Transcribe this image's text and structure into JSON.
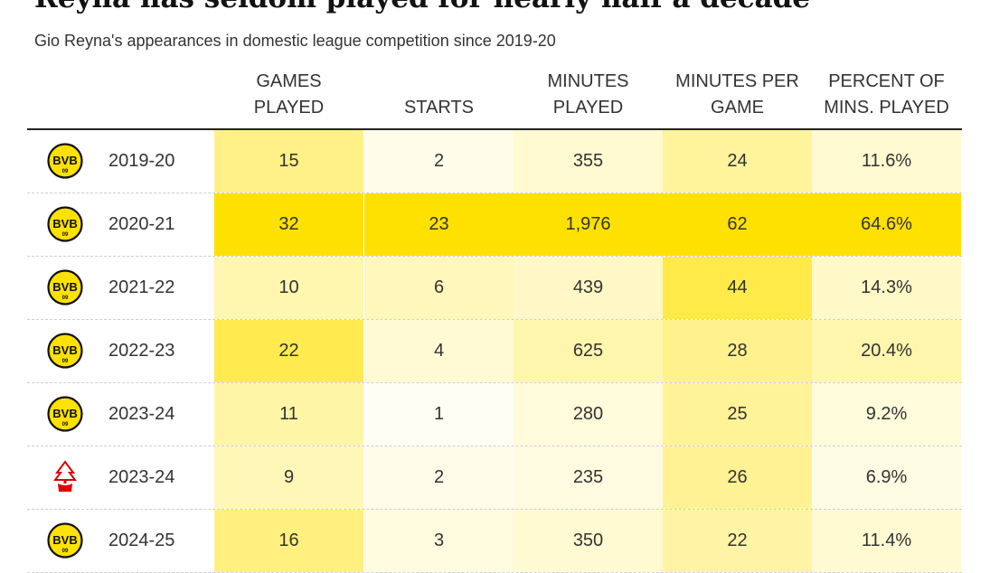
{
  "title": "Reyna has seldom played for nearly half a decade",
  "subtitle": "Gio Reyna's appearances in domestic league competition since 2019-20",
  "colors": {
    "scale_low": "#ffffff",
    "scale_high": "#ffe100",
    "bvb_yellow": "#fde100",
    "forest_red": "#dd0000"
  },
  "chart_data": {
    "type": "table",
    "columns": [
      {
        "key": "games",
        "label_lines": [
          "GAMES",
          "PLAYED"
        ]
      },
      {
        "key": "starts",
        "label_lines": [
          "STARTS"
        ]
      },
      {
        "key": "minutes",
        "label_lines": [
          "MINUTES",
          "PLAYED"
        ]
      },
      {
        "key": "mpg",
        "label_lines": [
          "MINUTES PER",
          "GAME"
        ]
      },
      {
        "key": "pct",
        "label_lines": [
          "PERCENT OF",
          "MINS. PLAYED"
        ]
      }
    ],
    "rows": [
      {
        "club_icon": "bvb-crest-icon",
        "season": "2019-20",
        "games": 15,
        "starts": 2,
        "minutes": 355,
        "minutes_display": "355",
        "mpg": 24,
        "pct": 11.6,
        "pct_display": "11.6%"
      },
      {
        "club_icon": "bvb-crest-icon",
        "season": "2020-21",
        "games": 32,
        "starts": 23,
        "minutes": 1976,
        "minutes_display": "1,976",
        "mpg": 62,
        "pct": 64.6,
        "pct_display": "64.6%"
      },
      {
        "club_icon": "bvb-crest-icon",
        "season": "2021-22",
        "games": 10,
        "starts": 6,
        "minutes": 439,
        "minutes_display": "439",
        "mpg": 44,
        "pct": 14.3,
        "pct_display": "14.3%"
      },
      {
        "club_icon": "bvb-crest-icon",
        "season": "2022-23",
        "games": 22,
        "starts": 4,
        "minutes": 625,
        "minutes_display": "625",
        "mpg": 28,
        "pct": 20.4,
        "pct_display": "20.4%"
      },
      {
        "club_icon": "bvb-crest-icon",
        "season": "2023-24",
        "games": 11,
        "starts": 1,
        "minutes": 280,
        "minutes_display": "280",
        "mpg": 25,
        "pct": 9.2,
        "pct_display": "9.2%"
      },
      {
        "club_icon": "forest-crest-icon",
        "season": "2023-24",
        "games": 9,
        "starts": 2,
        "minutes": 235,
        "minutes_display": "235",
        "mpg": 26,
        "pct": 6.9,
        "pct_display": "6.9%"
      },
      {
        "club_icon": "bvb-crest-icon",
        "season": "2024-25",
        "games": 16,
        "starts": 3,
        "minutes": 350,
        "minutes_display": "350",
        "mpg": 22,
        "pct": 11.4,
        "pct_display": "11.4%"
      }
    ]
  }
}
